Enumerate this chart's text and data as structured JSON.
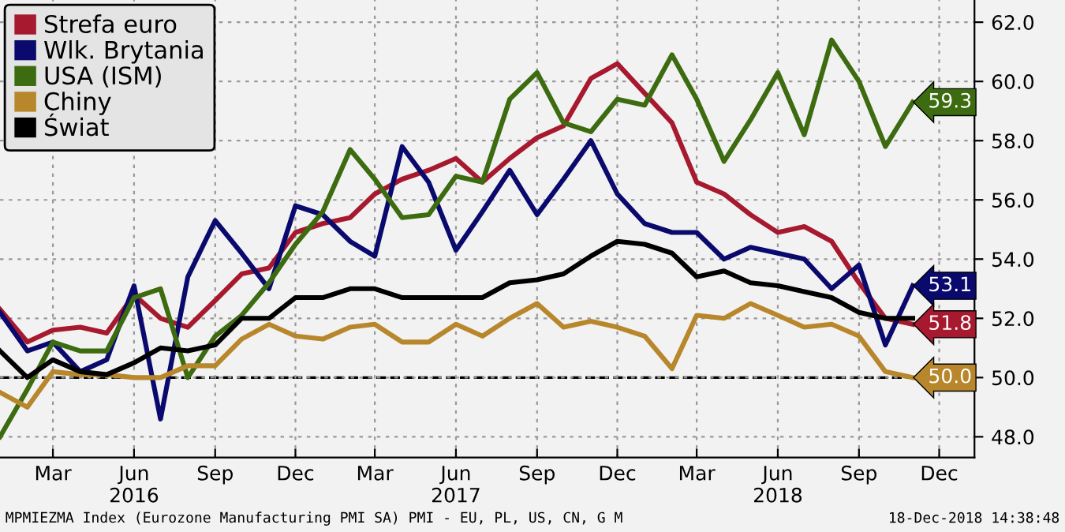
{
  "chart_data": {
    "type": "line",
    "x": [
      "2016-01",
      "2016-02",
      "2016-03",
      "2016-04",
      "2016-05",
      "2016-06",
      "2016-07",
      "2016-08",
      "2016-09",
      "2016-10",
      "2016-11",
      "2016-12",
      "2017-01",
      "2017-02",
      "2017-03",
      "2017-04",
      "2017-05",
      "2017-06",
      "2017-07",
      "2017-08",
      "2017-09",
      "2017-10",
      "2017-11",
      "2017-12",
      "2018-01",
      "2018-02",
      "2018-03",
      "2018-04",
      "2018-05",
      "2018-06",
      "2018-07",
      "2018-08",
      "2018-09",
      "2018-10",
      "2018-11"
    ],
    "series": [
      {
        "name": "Strefa euro",
        "color": "#a6192e",
        "values": [
          52.3,
          51.2,
          51.6,
          51.7,
          51.5,
          52.8,
          52.0,
          51.7,
          52.6,
          53.5,
          53.7,
          54.9,
          55.2,
          55.4,
          56.2,
          56.7,
          57.0,
          57.4,
          56.6,
          57.4,
          58.1,
          58.5,
          60.1,
          60.6,
          59.6,
          58.6,
          56.6,
          56.2,
          55.5,
          54.9,
          55.1,
          54.6,
          53.2,
          52.0,
          51.8
        ],
        "value_labels": [
          null,
          null,
          null,
          null,
          null,
          null,
          null,
          null,
          null,
          null,
          null,
          null,
          null,
          null,
          null,
          null,
          null,
          null,
          null,
          null,
          null,
          null,
          null,
          null,
          null,
          null,
          null,
          null,
          null,
          null,
          null,
          null,
          null,
          null,
          "51.8"
        ]
      },
      {
        "name": "Wlk. Brytania",
        "color": "#0a0a6e",
        "values": [
          52.2,
          50.9,
          51.2,
          50.2,
          50.6,
          53.1,
          48.6,
          53.4,
          55.3,
          54.2,
          53.0,
          55.8,
          55.5,
          54.6,
          54.1,
          57.8,
          56.6,
          54.3,
          55.6,
          57.0,
          55.5,
          56.7,
          58.0,
          56.2,
          55.2,
          54.9,
          54.9,
          54.0,
          54.4,
          54.2,
          54.0,
          53.0,
          53.8,
          51.1,
          53.1
        ],
        "value_labels": [
          null,
          null,
          null,
          null,
          null,
          null,
          null,
          null,
          null,
          null,
          null,
          null,
          null,
          null,
          null,
          null,
          null,
          null,
          null,
          null,
          null,
          null,
          null,
          null,
          null,
          null,
          null,
          null,
          null,
          null,
          null,
          null,
          null,
          null,
          "53.1"
        ]
      },
      {
        "name": "USA (ISM)",
        "color": "#3d6b10",
        "values": [
          48.0,
          49.6,
          51.2,
          50.9,
          50.9,
          52.7,
          53.0,
          50.0,
          51.4,
          52.1,
          53.2,
          54.5,
          55.6,
          57.7,
          56.7,
          55.4,
          55.5,
          56.8,
          56.6,
          59.4,
          60.3,
          58.6,
          58.3,
          59.4,
          59.2,
          60.9,
          59.4,
          57.3,
          58.7,
          60.3,
          58.2,
          61.4,
          60.0,
          57.8,
          59.3
        ],
        "value_labels": [
          null,
          null,
          null,
          null,
          null,
          null,
          null,
          null,
          null,
          null,
          null,
          null,
          null,
          null,
          null,
          null,
          null,
          null,
          null,
          null,
          null,
          null,
          null,
          null,
          null,
          null,
          null,
          null,
          null,
          null,
          null,
          null,
          null,
          null,
          "59.3"
        ]
      },
      {
        "name": "Chiny",
        "color": "#b8862b",
        "values": [
          49.5,
          49.0,
          50.2,
          50.1,
          50.1,
          50.0,
          50.0,
          50.4,
          50.4,
          51.3,
          51.8,
          51.4,
          51.3,
          51.7,
          51.8,
          51.2,
          51.2,
          51.8,
          51.4,
          52.0,
          52.5,
          51.7,
          51.9,
          51.7,
          51.4,
          50.3,
          52.1,
          52.0,
          52.5,
          52.1,
          51.7,
          51.8,
          51.4,
          50.2,
          50.0
        ],
        "value_labels": [
          null,
          null,
          null,
          null,
          null,
          null,
          null,
          null,
          null,
          null,
          null,
          null,
          null,
          null,
          null,
          null,
          null,
          null,
          null,
          null,
          null,
          null,
          null,
          null,
          null,
          null,
          null,
          null,
          null,
          null,
          null,
          null,
          null,
          null,
          "50.0"
        ]
      },
      {
        "name": "Świat",
        "color": "#000000",
        "values": [
          50.9,
          50.0,
          50.6,
          50.2,
          50.1,
          50.5,
          51.0,
          50.9,
          51.1,
          52.0,
          52.0,
          52.7,
          52.7,
          53.0,
          53.0,
          52.7,
          52.7,
          52.7,
          52.7,
          53.2,
          53.3,
          53.5,
          54.1,
          54.6,
          54.5,
          54.2,
          53.4,
          53.6,
          53.2,
          53.1,
          52.9,
          52.7,
          52.2,
          52.0,
          52.0
        ]
      }
    ],
    "xlim": [
      "2016-01-01",
      "2019-01-10"
    ],
    "xticks": [
      {
        "value": "2016-03-01",
        "label": "Mar"
      },
      {
        "value": "2016-06-01",
        "label": "Jun\n2016"
      },
      {
        "value": "2016-09-01",
        "label": "Sep"
      },
      {
        "value": "2016-12-01",
        "label": "Dec"
      },
      {
        "value": "2017-03-01",
        "label": "Mar"
      },
      {
        "value": "2017-06-01",
        "label": "Jun\n2017"
      },
      {
        "value": "2017-09-01",
        "label": "Sep"
      },
      {
        "value": "2017-12-01",
        "label": "Dec"
      },
      {
        "value": "2018-03-01",
        "label": "Mar"
      },
      {
        "value": "2018-06-01",
        "label": "Jun\n2018"
      },
      {
        "value": "2018-09-01",
        "label": "Sep"
      },
      {
        "value": "2018-12-01",
        "label": "Dec"
      }
    ],
    "ylim": [
      47.3,
      62.75
    ],
    "yticks": [
      {
        "value": 48,
        "label": "48.0"
      },
      {
        "value": 50,
        "label": "50.0"
      },
      {
        "value": 52,
        "label": "52.0"
      },
      {
        "value": 54,
        "label": "54.0"
      },
      {
        "value": 56,
        "label": "56.0"
      },
      {
        "value": 58,
        "label": "58.0"
      },
      {
        "value": 60,
        "label": "60.0"
      },
      {
        "value": 62,
        "label": "62.0"
      }
    ],
    "ref_lines": [
      {
        "axis": "y",
        "value": 50,
        "color": "#000000",
        "line_style": "dashed"
      }
    ],
    "grid": true,
    "legend": "top left",
    "marker": "none",
    "line_style": "solid",
    "annotations": [
      "MPMIEZMA Index (Eurozone Manufacturing PMI SA) PMI - EU, PL, US, CN, G M",
      "18-Dec-2018 14:38:48"
    ]
  }
}
